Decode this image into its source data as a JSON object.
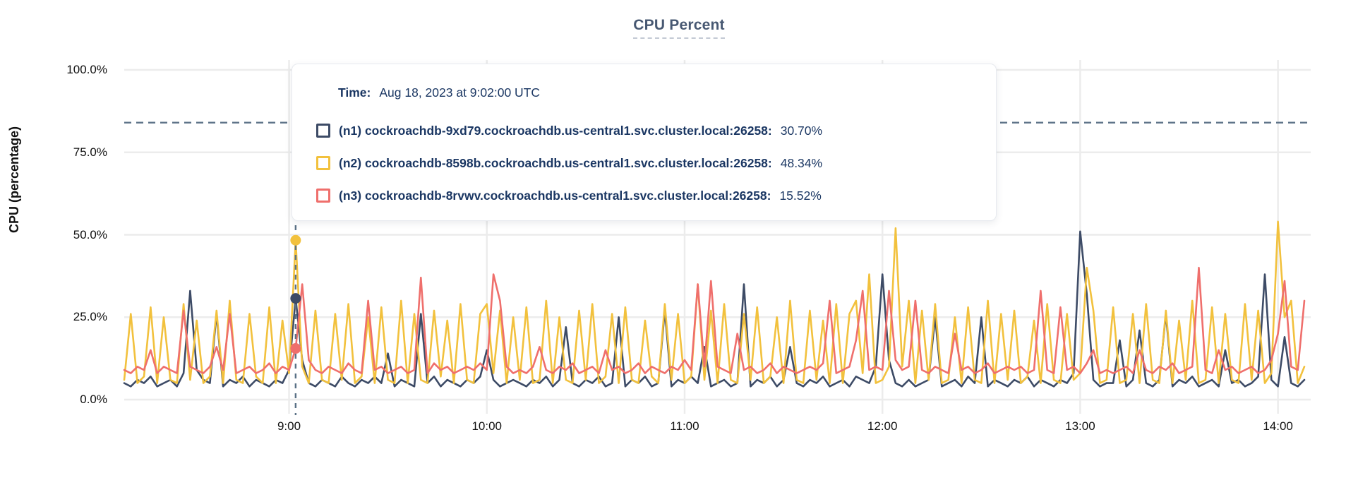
{
  "tooltip": {
    "time_label": "Time:",
    "time_value": "Aug 18, 2023 at 9:02:00 UTC"
  },
  "colors": {
    "grid": "#ececec",
    "threshold_line": "#5f7489",
    "hover_line": "#5a7186",
    "title": "#475872",
    "tooltip_text": "#1b3763"
  },
  "chart_data": {
    "type": "line",
    "title": "CPU Percent",
    "xlabel": "",
    "ylabel": "CPU (percentage)",
    "ylim": [
      0,
      100
    ],
    "grid": true,
    "legend_position": "tooltip",
    "threshold_percent": 84,
    "y_ticks": [
      {
        "label": "0.0%",
        "value": 0
      },
      {
        "label": "25.0%",
        "value": 25
      },
      {
        "label": "50.0%",
        "value": 50
      },
      {
        "label": "75.0%",
        "value": 75
      },
      {
        "label": "100.0%",
        "value": 100
      }
    ],
    "x_ticks": [
      {
        "label": "9:00",
        "minutes": 540
      },
      {
        "label": "10:00",
        "minutes": 600
      },
      {
        "label": "11:00",
        "minutes": 660
      },
      {
        "label": "12:00",
        "minutes": 720
      },
      {
        "label": "13:00",
        "minutes": 780
      },
      {
        "label": "14:00",
        "minutes": 840
      }
    ],
    "x_start_minutes": 490,
    "x_step_minutes": 2,
    "hover": {
      "time_minutes": 542,
      "time_text": "Aug 18, 2023 at 9:02:00 UTC"
    },
    "series": [
      {
        "name": "(n1) cockroachdb-9xd79.cockroachdb.us-central1.svc.cluster.local:26258:",
        "color": "#3d4b66",
        "hover_value_label": "30.70%",
        "hover_value": 30.7,
        "values": [
          5,
          4,
          6,
          5,
          7,
          4,
          5,
          6,
          4,
          8,
          33,
          9,
          6,
          5,
          26,
          4,
          6,
          5,
          7,
          4,
          6,
          5,
          4,
          6,
          5,
          9,
          30.7,
          12,
          5,
          4,
          6,
          5,
          4,
          7,
          5,
          4,
          6,
          5,
          7,
          5,
          14,
          4,
          6,
          5,
          4,
          26,
          5,
          7,
          4,
          6,
          5,
          4,
          6,
          5,
          7,
          15,
          6,
          4,
          5,
          6,
          5,
          4,
          6,
          5,
          7,
          4,
          6,
          22,
          5,
          4,
          6,
          5,
          7,
          4,
          5,
          25,
          4,
          6,
          5,
          7,
          4,
          5,
          27,
          4,
          6,
          5,
          7,
          5,
          16,
          4,
          5,
          6,
          4,
          5,
          35,
          4,
          6,
          5,
          7,
          4,
          6,
          16,
          5,
          4,
          6,
          5,
          7,
          4,
          5,
          6,
          4,
          7,
          6,
          5,
          10,
          38,
          12,
          5,
          4,
          6,
          4,
          5,
          6,
          25,
          4,
          5,
          6,
          4,
          7,
          5,
          25,
          4,
          6,
          5,
          4,
          6,
          5,
          7,
          4,
          6,
          5,
          4,
          6,
          5,
          8,
          51,
          32,
          6,
          4,
          5,
          5,
          18,
          4,
          6,
          21,
          5,
          4,
          6,
          26,
          4,
          6,
          5,
          7,
          4,
          5,
          6,
          4,
          15,
          5,
          6,
          4,
          5,
          7,
          38,
          6,
          4,
          19,
          5,
          4,
          6
        ]
      },
      {
        "name": "(n2) cockroachdb-8598b.cockroachdb.us-central1.svc.cluster.local:26258:",
        "color": "#f2c13d",
        "hover_value_label": "48.34%",
        "hover_value": 48.34,
        "values": [
          6,
          26,
          5,
          7,
          28,
          5,
          25,
          6,
          5,
          29,
          6,
          24,
          5,
          7,
          27,
          5,
          30,
          6,
          5,
          26,
          7,
          5,
          28,
          5,
          24,
          8,
          48.34,
          10,
          5,
          27,
          6,
          5,
          26,
          6,
          29,
          5,
          7,
          25,
          5,
          28,
          6,
          5,
          30,
          5,
          26,
          6,
          5,
          27,
          7,
          24,
          5,
          29,
          6,
          5,
          26,
          29,
          8,
          27,
          5,
          25,
          6,
          28,
          5,
          6,
          30,
          5,
          25,
          6,
          5,
          27,
          6,
          29,
          5,
          7,
          26,
          5,
          28,
          6,
          5,
          24,
          7,
          5,
          29,
          6,
          26,
          5,
          7,
          35,
          6,
          27,
          5,
          29,
          6,
          5,
          26,
          6,
          28,
          5,
          7,
          25,
          5,
          30,
          6,
          5,
          27,
          6,
          24,
          5,
          29,
          5,
          26,
          30,
          8,
          38,
          5,
          6,
          10,
          52,
          10,
          30,
          5,
          27,
          6,
          29,
          5,
          6,
          25,
          5,
          28,
          6,
          5,
          30,
          5,
          26,
          6,
          27,
          5,
          7,
          24,
          5,
          29,
          6,
          5,
          26,
          6,
          8,
          40,
          27,
          5,
          6,
          28,
          5,
          6,
          26,
          5,
          29,
          6,
          5,
          27,
          5,
          24,
          6,
          30,
          5,
          6,
          28,
          5,
          26,
          6,
          5,
          29,
          6,
          27,
          5,
          8,
          54,
          25,
          30,
          5,
          10
        ]
      },
      {
        "name": "(n3) cockroachdb-8rvwv.cockroachdb.us-central1.svc.cluster.local:26258:",
        "color": "#ef6f6c",
        "hover_value_label": "15.52%",
        "hover_value": 15.52,
        "values": [
          9,
          8,
          10,
          9,
          15,
          8,
          10,
          9,
          8,
          27,
          10,
          9,
          8,
          10,
          16,
          9,
          26,
          8,
          9,
          10,
          8,
          9,
          11,
          8,
          10,
          9,
          15.52,
          35,
          12,
          9,
          8,
          10,
          9,
          8,
          11,
          9,
          8,
          30,
          9,
          10,
          8,
          9,
          10,
          8,
          9,
          37,
          8,
          11,
          9,
          10,
          8,
          9,
          10,
          9,
          11,
          9,
          38,
          30,
          10,
          8,
          9,
          8,
          10,
          16,
          9,
          8,
          10,
          9,
          11,
          8,
          9,
          10,
          8,
          15,
          9,
          10,
          8,
          9,
          11,
          8,
          10,
          9,
          8,
          10,
          9,
          12,
          9,
          35,
          10,
          36,
          10,
          9,
          8,
          20,
          9,
          10,
          8,
          9,
          11,
          8,
          10,
          9,
          8,
          9,
          10,
          9,
          11,
          30,
          8,
          9,
          10,
          18,
          33,
          9,
          10,
          9,
          33,
          12,
          9,
          10,
          30,
          9,
          8,
          10,
          9,
          8,
          20,
          9,
          10,
          8,
          9,
          11,
          8,
          9,
          10,
          9,
          10,
          8,
          9,
          33,
          9,
          8,
          28,
          9,
          10,
          8,
          11,
          15,
          8,
          9,
          8,
          9,
          10,
          8,
          15,
          9,
          8,
          10,
          9,
          11,
          8,
          9,
          10,
          40,
          9,
          8,
          15,
          9,
          10,
          8,
          9,
          10,
          8,
          9,
          12,
          20,
          36,
          10,
          9,
          30
        ]
      }
    ]
  }
}
